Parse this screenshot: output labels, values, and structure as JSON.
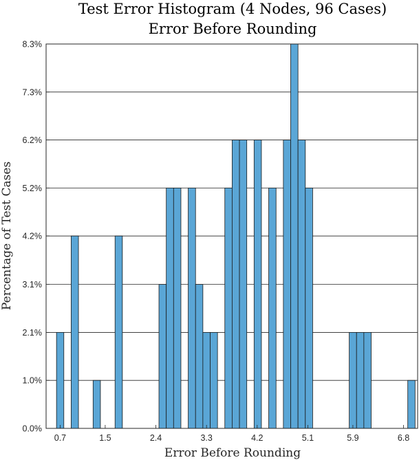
{
  "chart_data": {
    "type": "bar",
    "title": "Test Error Histogram (4 Nodes, 96 Cases)",
    "subtitle": "Error Before Rounding",
    "xlabel": "Error Before Rounding",
    "ylabel": "Percentage of Test Cases",
    "bar_color": "#5aa6d6",
    "grid_y": true,
    "xlim": [
      0.45,
      7.05
    ],
    "ylim": [
      0,
      8.33
    ],
    "xticks": [
      0.7,
      1.5,
      2.4,
      3.3,
      4.2,
      5.1,
      5.9,
      6.8
    ],
    "xtick_labels": [
      "0.7",
      "1.5",
      "2.4",
      "3.3",
      "4.2",
      "5.1",
      "5.9",
      "6.8"
    ],
    "yticks": [
      0,
      1.04,
      2.08,
      3.12,
      4.17,
      5.21,
      6.25,
      7.29,
      8.33
    ],
    "ytick_labels": [
      "0.0%",
      "1.0%",
      "2.1%",
      "3.1%",
      "4.2%",
      "5.2%",
      "6.2%",
      "7.3%",
      "8.3%"
    ],
    "bin_width": 0.13,
    "bins": [
      {
        "x": 0.7,
        "value": 2.08
      },
      {
        "x": 0.96,
        "value": 4.17
      },
      {
        "x": 1.35,
        "value": 1.04
      },
      {
        "x": 1.74,
        "value": 4.17
      },
      {
        "x": 2.52,
        "value": 3.12
      },
      {
        "x": 2.65,
        "value": 5.21
      },
      {
        "x": 2.78,
        "value": 5.21
      },
      {
        "x": 3.04,
        "value": 5.21
      },
      {
        "x": 3.17,
        "value": 3.12
      },
      {
        "x": 3.3,
        "value": 2.08
      },
      {
        "x": 3.43,
        "value": 2.08
      },
      {
        "x": 3.69,
        "value": 5.21
      },
      {
        "x": 3.82,
        "value": 6.25
      },
      {
        "x": 3.95,
        "value": 6.25
      },
      {
        "x": 4.21,
        "value": 6.25
      },
      {
        "x": 4.47,
        "value": 5.21
      },
      {
        "x": 4.73,
        "value": 6.25
      },
      {
        "x": 4.86,
        "value": 8.33
      },
      {
        "x": 4.99,
        "value": 6.25
      },
      {
        "x": 5.12,
        "value": 5.21
      },
      {
        "x": 5.9,
        "value": 2.08
      },
      {
        "x": 6.03,
        "value": 2.08
      },
      {
        "x": 6.16,
        "value": 2.08
      },
      {
        "x": 6.94,
        "value": 1.04
      }
    ]
  }
}
